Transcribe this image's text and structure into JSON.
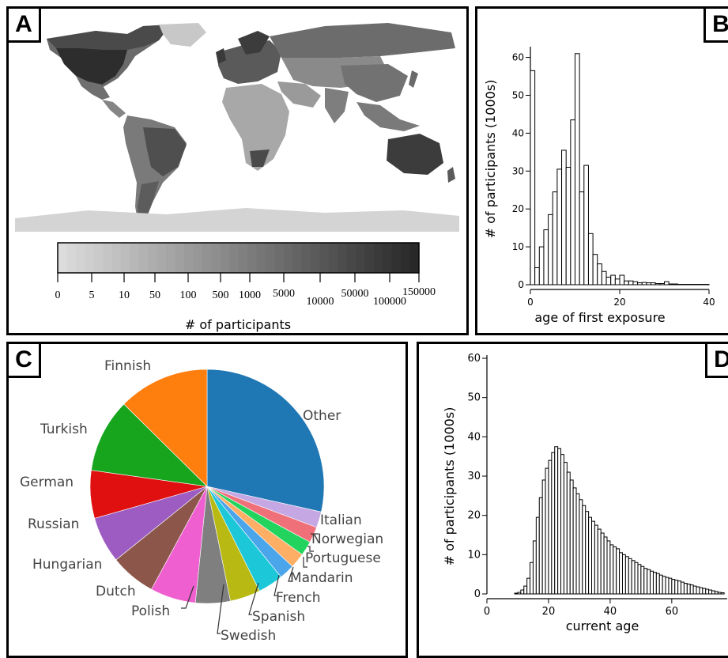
{
  "panels": {
    "a": {
      "label": "A"
    },
    "b": {
      "label": "B"
    },
    "c": {
      "label": "C"
    },
    "d": {
      "label": "D"
    }
  },
  "colorbar": {
    "ticks": [
      "0",
      "5",
      "10",
      "50",
      "100",
      "500",
      "1000",
      "5000",
      "10000",
      "50000",
      "100000",
      "150000"
    ],
    "label": "# of participants"
  },
  "chart_data": [
    {
      "type": "heatmap",
      "panel": "A",
      "title": "",
      "description_legend": "# of participants",
      "scale": "log-binned grayscale",
      "legend_ticks": [
        0,
        5,
        10,
        50,
        100,
        500,
        1000,
        5000,
        10000,
        50000,
        100000,
        150000
      ]
    },
    {
      "type": "bar",
      "panel": "B",
      "xlabel": "age of first exposure",
      "ylabel": "# of participants (1000s)",
      "xlim": [
        0,
        40
      ],
      "ylim": [
        0,
        62
      ],
      "xticks": [
        0,
        20,
        40
      ],
      "yticks": [
        0,
        10,
        20,
        30,
        40,
        50,
        60
      ],
      "x": [
        0,
        1,
        2,
        3,
        4,
        5,
        6,
        7,
        8,
        9,
        10,
        11,
        12,
        13,
        14,
        15,
        16,
        17,
        18,
        19,
        20,
        21,
        22,
        23,
        24,
        25,
        26,
        27,
        28,
        29,
        30,
        31,
        32,
        33,
        34,
        35,
        36,
        37,
        38,
        39
      ],
      "values": [
        56.5,
        4.5,
        10,
        14.5,
        18.5,
        24.5,
        30.5,
        35.5,
        31,
        43.5,
        61,
        24.5,
        31.5,
        13.5,
        8,
        5.5,
        3.5,
        2,
        2.5,
        1.5,
        2.5,
        1,
        1,
        0.8,
        0.5,
        0.6,
        0.5,
        0.5,
        0.3,
        0.3,
        0.8,
        0.2,
        0.2,
        0.1,
        0.1,
        0.1,
        0.1,
        0.1,
        0.1,
        0.1
      ]
    },
    {
      "type": "pie",
      "panel": "C",
      "labels": [
        "Other",
        "Italian",
        "Norwegian",
        "Portuguese",
        "Mandarin",
        "French",
        "Spanish",
        "Swedish",
        "Polish",
        "Dutch",
        "Hungarian",
        "Russian",
        "German",
        "Turkish",
        "Finnish"
      ],
      "values": [
        28.5,
        2.2,
        2.2,
        2.0,
        2.1,
        2.1,
        3.5,
        4.2,
        4.8,
        6.3,
        6.3,
        6.4,
        6.6,
        10.2,
        12.6
      ],
      "colors": [
        "#1f77b4",
        "#c5a8e3",
        "#f0707a",
        "#22d45e",
        "#ffae66",
        "#4aa5ea",
        "#1cc8d8",
        "#b9b914",
        "#7f7f7f",
        "#ef5fcf",
        "#8c564b",
        "#9c5cc2",
        "#e01010",
        "#18a51e",
        "#ff7f0e"
      ]
    },
    {
      "type": "bar",
      "panel": "D",
      "xlabel": "current age",
      "ylabel": "# of participants (1000s)",
      "xlim": [
        0,
        78
      ],
      "ylim": [
        0,
        60
      ],
      "xticks": [
        0,
        20,
        40,
        60
      ],
      "yticks": [
        0,
        10,
        20,
        30,
        40,
        50,
        60
      ],
      "x": [
        9,
        10,
        11,
        12,
        13,
        14,
        15,
        16,
        17,
        18,
        19,
        20,
        21,
        22,
        23,
        24,
        25,
        26,
        27,
        28,
        29,
        30,
        31,
        32,
        33,
        34,
        35,
        36,
        37,
        38,
        39,
        40,
        41,
        42,
        43,
        44,
        45,
        46,
        47,
        48,
        49,
        50,
        51,
        52,
        53,
        54,
        55,
        56,
        57,
        58,
        59,
        60,
        61,
        62,
        63,
        64,
        65,
        66,
        67,
        68,
        69,
        70,
        71,
        72,
        73,
        74,
        75,
        76
      ],
      "values": [
        0.2,
        0.4,
        1,
        2,
        4,
        8,
        13.5,
        19.5,
        24.5,
        29,
        32,
        34,
        36,
        37.5,
        37,
        35.5,
        33.5,
        31,
        29,
        27,
        25.5,
        24,
        22.5,
        21,
        19.5,
        18.5,
        17.5,
        16.5,
        15.5,
        14.5,
        13.5,
        12.5,
        12,
        11.5,
        10.5,
        10,
        9.5,
        9,
        8.5,
        8,
        7.5,
        7,
        6.5,
        6.2,
        5.8,
        5.5,
        5.2,
        4.8,
        4.5,
        4.2,
        4,
        3.7,
        3.5,
        3.3,
        3,
        2.7,
        2.5,
        2.3,
        2,
        1.8,
        1.6,
        1.4,
        1.2,
        1,
        0.8,
        0.6,
        0.4,
        0.3
      ]
    }
  ]
}
